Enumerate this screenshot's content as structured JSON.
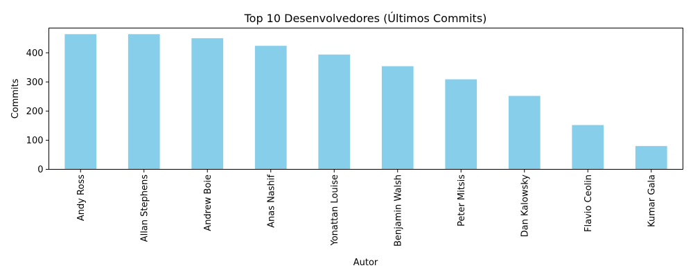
{
  "chart_data": {
    "type": "bar",
    "title": "Top 10 Desenvolvedores (Últimos Commits)",
    "xlabel": "Autor",
    "ylabel": "Commits",
    "categories": [
      "Andy Ross",
      "Allan Stephens",
      "Andrew Boie",
      "Anas Nashif",
      "Yonattan Louise",
      "Benjamin Walsh",
      "Peter Mitsis",
      "Dan Kalowsky",
      "Flavio Ceolin",
      "Kumar Gala"
    ],
    "values": [
      464,
      464,
      450,
      424,
      394,
      354,
      309,
      252,
      152,
      80
    ],
    "ylim": [
      0,
      485
    ],
    "yticks": [
      0,
      100,
      200,
      300,
      400
    ],
    "bar_color": "#87ceeb",
    "grid": false,
    "legend": "none"
  }
}
